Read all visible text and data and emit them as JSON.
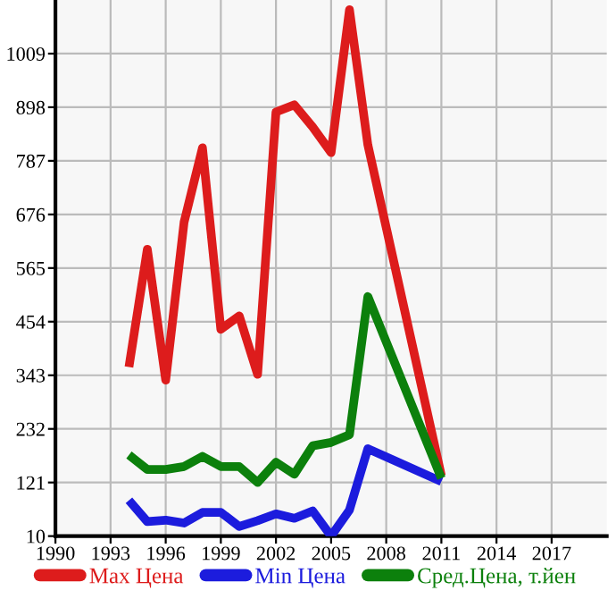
{
  "chart_data": {
    "type": "line",
    "x": [
      1994,
      1995,
      1996,
      1997,
      1998,
      1999,
      2000,
      2001,
      2002,
      2003,
      2004,
      2005,
      2006,
      2007,
      2011
    ],
    "series": [
      {
        "name": "Max Цена",
        "color": "#dd1c1c",
        "values": [
          360,
          604,
          333,
          660,
          814,
          438,
          466,
          345,
          888,
          903,
          857,
          804,
          1100,
          820,
          135
        ]
      },
      {
        "name": "Min Цена",
        "color": "#1c1cdd",
        "values": [
          84,
          40,
          43,
          37,
          59,
          59,
          30,
          42,
          56,
          47,
          62,
          10,
          64,
          191,
          123
        ]
      },
      {
        "name": "Сред.Цена, т.йен",
        "color": "#0c800c",
        "values": [
          178,
          148,
          148,
          154,
          175,
          154,
          154,
          121,
          163,
          138,
          197,
          204,
          220,
          506,
          130
        ]
      }
    ],
    "xlim": [
      1990,
      2020
    ],
    "xticks": [
      1990,
      1993,
      1996,
      1999,
      2002,
      2005,
      2008,
      2011,
      2014,
      2017
    ],
    "ylim": [
      10,
      1120
    ],
    "yticks": [
      10,
      121,
      232,
      343,
      454,
      565,
      676,
      787,
      898,
      1009
    ],
    "grid": true,
    "legend": "bottom",
    "marker": "none",
    "line_style": "solid"
  }
}
